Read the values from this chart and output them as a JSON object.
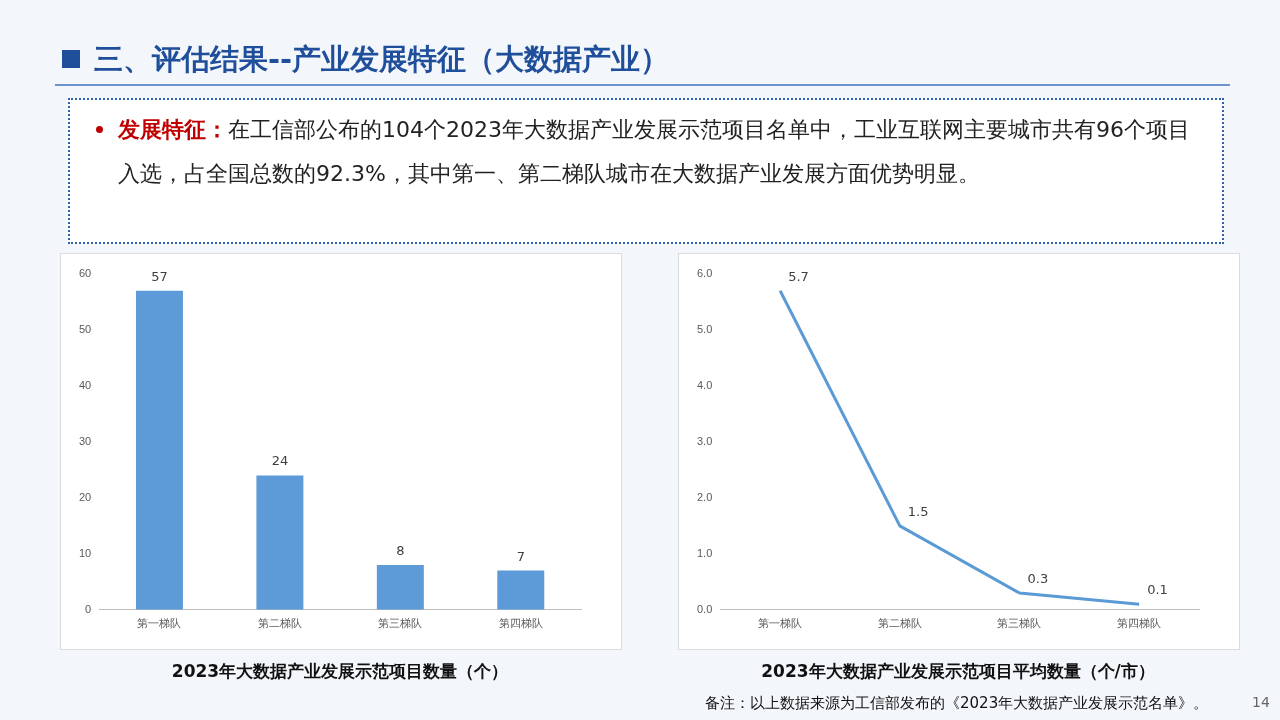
{
  "chart_data": [
    {
      "type": "other",
      "title": "三、评估结果--产业发展特征（大数据产业）",
      "annotations": [
        "发展特征：",
        "在工信部公布的104个2023年大数据产业发展示范项目名单中，工业互联网主要城市共有96个项目入选，占全国总数的92.3%，其中第一、第二梯队城市在大数据产业发展方面优势明显。",
        "14"
      ]
    },
    {
      "type": "bar",
      "title": "2023年大数据产业发展示范项目数量（个）",
      "categories": [
        "第一梯队",
        "第二梯队",
        "第三梯队",
        "第四梯队"
      ],
      "values": [
        57,
        24,
        8,
        7
      ],
      "color": "#5c9ad8",
      "ylim": [
        0,
        60
      ],
      "yticks": [
        0,
        10,
        20,
        30,
        40,
        50,
        60
      ],
      "data_labels": true,
      "grid": false,
      "legend": false
    },
    {
      "type": "line",
      "title": "2023年大数据产业发展示范项目平均数量（个/市）",
      "categories": [
        "第一梯队",
        "第二梯队",
        "第三梯队",
        "第四梯队"
      ],
      "values": [
        5.7,
        1.5,
        0.3,
        0.1
      ],
      "color": "#5b9bd5",
      "ylim": [
        0,
        6
      ],
      "yticks": [
        {
          "value": 0,
          "label": "0.0"
        },
        {
          "value": 1,
          "label": "1.0"
        },
        {
          "value": 2,
          "label": "2.0"
        },
        {
          "value": 3,
          "label": "3.0"
        },
        {
          "value": 4,
          "label": "4.0"
        },
        {
          "value": 5,
          "label": "5.0"
        },
        {
          "value": 6,
          "label": "6.0"
        }
      ],
      "data_labels": true,
      "grid": false,
      "legend": false,
      "marker": "none",
      "line_style": "solid",
      "annotations": [
        "备注：以上数据来源为工信部发布的《2023年大数据产业发展示范名单》。"
      ]
    }
  ]
}
